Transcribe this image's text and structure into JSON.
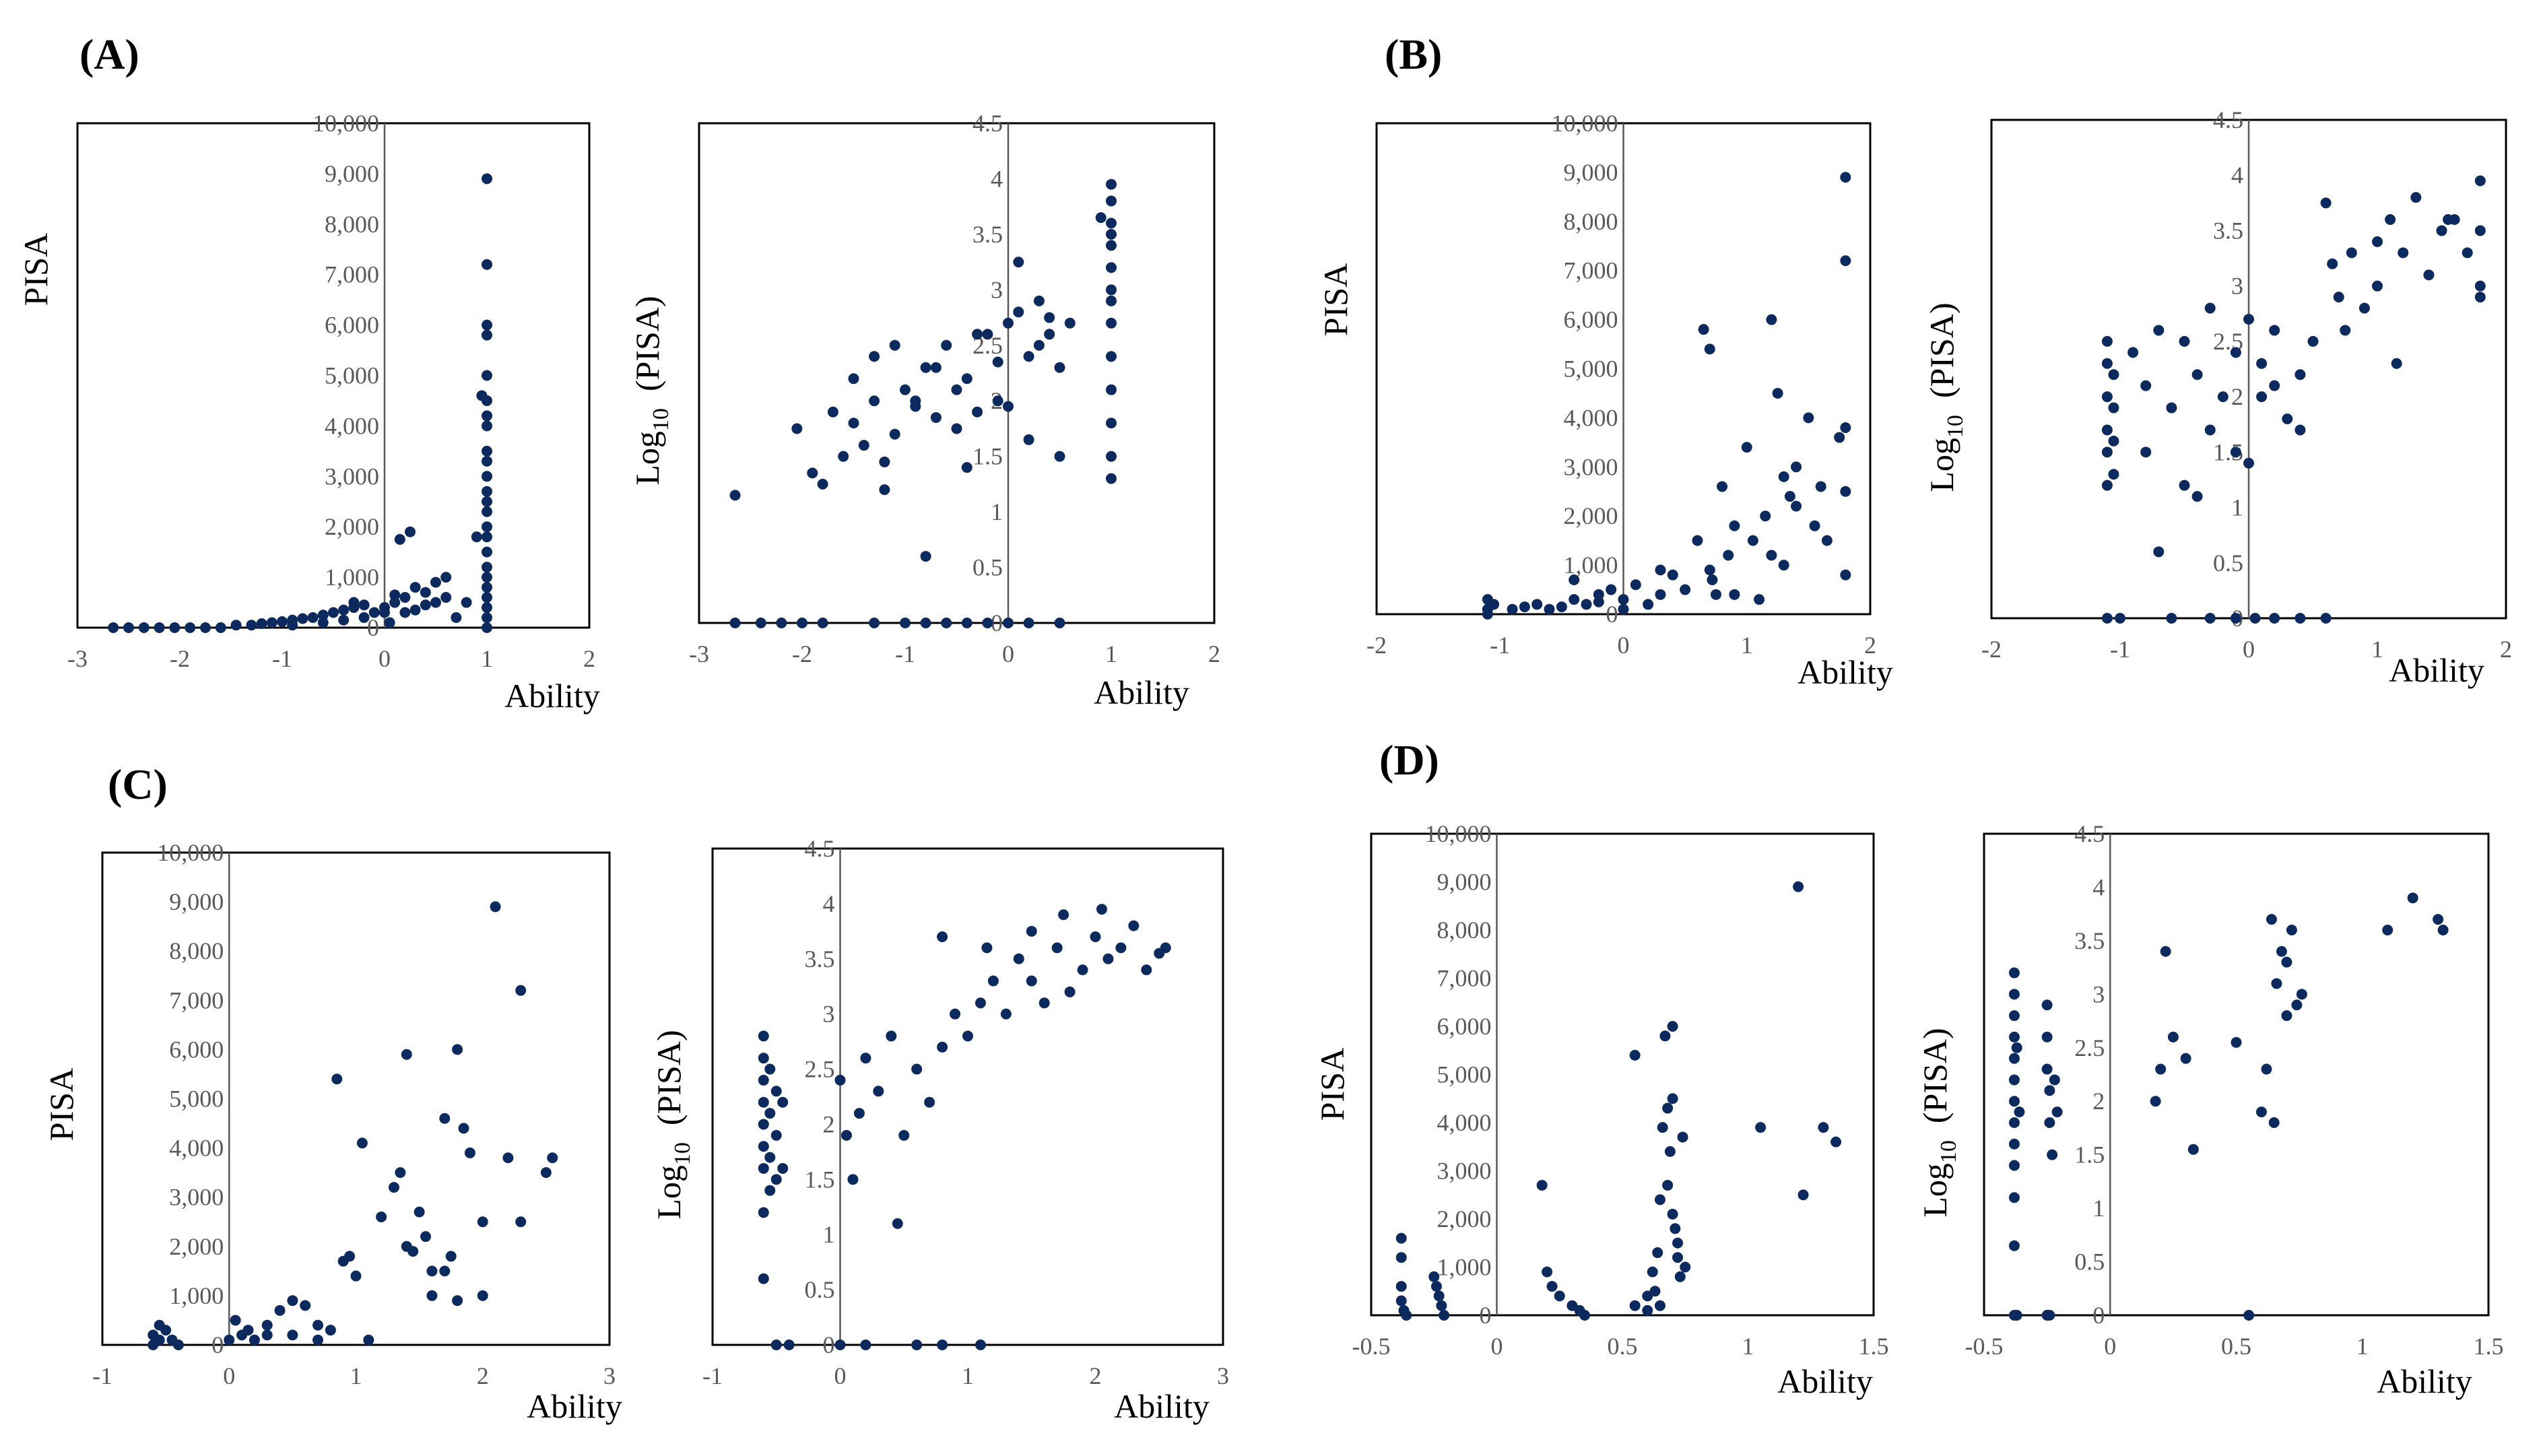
{
  "figure": {
    "panels": [
      {
        "id": "A",
        "label": "(A)"
      },
      {
        "id": "B",
        "label": "(B)"
      },
      {
        "id": "C",
        "label": "(C)"
      },
      {
        "id": "D",
        "label": "(D)"
      }
    ],
    "point_color": "#0d2a5e",
    "axis_line_color": "#595959"
  },
  "chart_data": [
    {
      "panel": "A",
      "type": "scatter",
      "title": "",
      "xlabel": "Ability",
      "ylabel": "PISA",
      "xlim": [
        -3,
        2
      ],
      "ylim": [
        0,
        10000
      ],
      "xticks": [
        "-3",
        "-2",
        "-1",
        "0",
        "1",
        "2"
      ],
      "yticks": [
        "0",
        "1,000",
        "2,000",
        "3,000",
        "4,000",
        "5,000",
        "6,000",
        "7,000",
        "8,000",
        "9,000",
        "10,000"
      ],
      "x": [
        -2.65,
        -2.5,
        -2.35,
        -2.2,
        -2.05,
        -1.9,
        -1.75,
        -1.6,
        -1.45,
        -1.3,
        -1.2,
        -1.1,
        -1.0,
        -0.9,
        -0.8,
        -0.7,
        -0.6,
        -0.5,
        -0.4,
        -0.3,
        -0.2,
        -0.1,
        0.0,
        0.1,
        0.2,
        0.3,
        0.4,
        0.5,
        0.6,
        0.7,
        -0.9,
        -0.6,
        -0.4,
        -0.2,
        0.0,
        0.1,
        0.15,
        0.25,
        0.3,
        0.4,
        0.5,
        0.6,
        -0.3,
        0.05,
        0.2,
        0.8,
        0.9,
        0.95,
        1.0,
        1.0,
        1.0,
        1.0,
        1.0,
        1.0,
        1.0,
        1.0,
        1.0,
        1.0,
        1.0,
        1.0,
        1.0,
        1.0,
        1.0,
        1.0,
        1.0,
        1.0,
        1.0,
        1.0,
        1.0,
        1.0,
        1.0,
        1.0
      ],
      "y": [
        0,
        0,
        0,
        0,
        0,
        0,
        0,
        0,
        50,
        50,
        80,
        100,
        120,
        150,
        180,
        200,
        250,
        300,
        350,
        400,
        450,
        300,
        400,
        500,
        600,
        350,
        450,
        500,
        600,
        200,
        50,
        100,
        150,
        200,
        300,
        650,
        1750,
        1900,
        800,
        700,
        900,
        1000,
        500,
        100,
        300,
        500,
        1800,
        4600,
        8900,
        7200,
        6000,
        5800,
        5000,
        4500,
        4200,
        4000,
        3500,
        3300,
        3000,
        2700,
        2500,
        2300,
        2000,
        1800,
        1500,
        1200,
        1000,
        800,
        600,
        400,
        200,
        0
      ]
    },
    {
      "panel": "A",
      "type": "scatter",
      "title": "",
      "xlabel": "Ability",
      "ylabel": "Log10 (PISA)",
      "ylabel_main": "Log",
      "ylabel_sub": "10",
      "ylabel_rest": "(PISA)",
      "xlim": [
        -3,
        2
      ],
      "ylim": [
        0,
        4.5
      ],
      "xticks": [
        "-3",
        "-2",
        "-1",
        "0",
        "1",
        "2"
      ],
      "yticks": [
        "0",
        "0.5",
        "1",
        "1.5",
        "2",
        "2.5",
        "3",
        "3.5",
        "4",
        "4.5"
      ],
      "x": [
        -2.65,
        -2.05,
        -1.9,
        -1.8,
        -1.7,
        -1.6,
        -1.5,
        -1.4,
        -1.3,
        -1.2,
        -1.1,
        -1.0,
        -0.9,
        -0.8,
        -0.7,
        -0.6,
        -0.5,
        -0.4,
        -0.3,
        -0.2,
        -0.1,
        0.0,
        0.1,
        0.2,
        0.3,
        0.4,
        0.5,
        0.6,
        -1.5,
        -1.3,
        -1.1,
        -0.9,
        -0.7,
        -0.5,
        -0.3,
        -0.1,
        0.1,
        0.3,
        0.5,
        -1.2,
        -0.8,
        -0.4,
        0.0,
        0.2,
        0.4,
        -2.65,
        -2.4,
        -2.2,
        -2.0,
        -1.8,
        -1.3,
        -1.0,
        -0.8,
        -0.6,
        -0.4,
        -0.2,
        0.0,
        0.2,
        0.5,
        1.0,
        1.0,
        1.0,
        1.0,
        1.0,
        1.0,
        1.0,
        1.0,
        1.0,
        1.0,
        1.0,
        1.0,
        1.0,
        1.0,
        0.9
      ],
      "y": [
        1.15,
        1.75,
        1.35,
        1.25,
        1.9,
        1.5,
        1.8,
        1.6,
        2.0,
        1.45,
        1.7,
        2.1,
        1.95,
        2.3,
        1.85,
        2.5,
        2.1,
        2.2,
        1.9,
        2.6,
        2.35,
        2.7,
        2.8,
        2.4,
        2.9,
        2.6,
        2.3,
        2.7,
        2.2,
        2.4,
        2.5,
        2.0,
        2.3,
        1.75,
        2.6,
        2.0,
        3.25,
        2.5,
        1.5,
        1.2,
        0.6,
        1.4,
        1.95,
        1.65,
        2.75,
        0,
        0,
        0,
        0,
        0,
        0,
        0,
        0,
        0,
        0,
        0,
        0,
        0,
        0,
        3.95,
        3.8,
        3.6,
        3.4,
        3.2,
        3.0,
        2.7,
        2.4,
        2.1,
        1.8,
        1.5,
        1.3,
        3.5,
        2.9,
        3.65
      ]
    },
    {
      "panel": "B",
      "type": "scatter",
      "title": "",
      "xlabel": "Ability",
      "ylabel": "PISA",
      "xlim": [
        -2,
        2
      ],
      "ylim": [
        0,
        10000
      ],
      "xticks": [
        "-2",
        "-1",
        "0",
        "1",
        "2"
      ],
      "yticks": [
        "0",
        "1,000",
        "2,000",
        "3,000",
        "4,000",
        "5,000",
        "6,000",
        "7,000",
        "8,000",
        "9,000",
        "10,000"
      ],
      "x": [
        -1.1,
        -1.1,
        -1.1,
        -1.05,
        -0.9,
        -0.8,
        -0.7,
        -0.6,
        -0.5,
        -0.4,
        -0.3,
        -0.2,
        -0.1,
        0.0,
        0.1,
        0.2,
        0.3,
        0.4,
        0.5,
        -0.4,
        0.0,
        -0.2,
        0.3,
        0.6,
        0.65,
        0.7,
        0.75,
        0.8,
        0.85,
        0.9,
        1.0,
        1.05,
        1.1,
        1.15,
        1.2,
        1.25,
        1.3,
        1.35,
        1.4,
        1.5,
        1.55,
        1.6,
        1.65,
        1.75,
        1.8,
        1.8,
        1.8,
        1.8,
        1.8,
        0.7,
        0.72,
        1.2,
        1.3,
        1.4,
        0.9
      ],
      "y": [
        0,
        100,
        300,
        200,
        100,
        150,
        200,
        100,
        150,
        300,
        200,
        400,
        500,
        300,
        600,
        200,
        400,
        800,
        500,
        700,
        100,
        250,
        900,
        1500,
        5800,
        5400,
        400,
        2600,
        1200,
        1800,
        3400,
        1500,
        300,
        2000,
        6000,
        4500,
        2800,
        2400,
        3000,
        4000,
        1800,
        2600,
        1500,
        3600,
        8900,
        7200,
        3800,
        2500,
        800,
        900,
        700,
        1200,
        1000,
        2200,
        400
      ]
    },
    {
      "panel": "B",
      "type": "scatter",
      "title": "",
      "xlabel": "Ability",
      "ylabel": "Log10 (PISA)",
      "ylabel_main": "Log",
      "ylabel_sub": "10",
      "ylabel_rest": "(PISA)",
      "xlim": [
        -2,
        2
      ],
      "ylim": [
        0,
        4.5
      ],
      "xticks": [
        "-2",
        "-1",
        "0",
        "1",
        "2"
      ],
      "yticks": [
        "0",
        "0.5",
        "1",
        "1.5",
        "2",
        "2.5",
        "3",
        "3.5",
        "4",
        "4.5"
      ],
      "x": [
        -1.1,
        -1.1,
        -1.1,
        -1.1,
        -1.1,
        -1.1,
        -1.05,
        -1.05,
        -1.05,
        -1.05,
        -0.9,
        -0.8,
        -0.7,
        -0.6,
        -0.5,
        -0.4,
        -0.3,
        -0.2,
        -0.1,
        0.0,
        0.1,
        0.2,
        0.3,
        0.4,
        0.5,
        -0.8,
        -0.5,
        -0.3,
        0.0,
        0.2,
        -0.7,
        -0.4,
        -0.1,
        0.1,
        0.4,
        0.6,
        0.65,
        0.7,
        0.75,
        0.8,
        0.9,
        1.0,
        1.1,
        1.2,
        1.3,
        1.4,
        1.5,
        1.6,
        1.7,
        1.8,
        1.8,
        1.8,
        1.8,
        1.55,
        1.0,
        1.15,
        -1.1,
        -1.0,
        -0.6,
        -0.3,
        -0.1,
        0.05,
        0.2,
        0.4,
        0.6
      ],
      "y": [
        2.5,
        2.3,
        2.0,
        1.7,
        1.5,
        1.2,
        2.2,
        1.9,
        1.6,
        1.3,
        2.4,
        2.1,
        2.6,
        1.9,
        2.5,
        2.2,
        2.8,
        2.0,
        2.4,
        2.7,
        2.3,
        2.6,
        1.8,
        2.2,
        2.5,
        1.5,
        1.2,
        1.7,
        1.4,
        2.1,
        0.6,
        1.1,
        1.5,
        2.0,
        1.7,
        3.75,
        3.2,
        2.9,
        2.6,
        3.3,
        2.8,
        3.4,
        3.6,
        3.3,
        3.8,
        3.1,
        3.5,
        3.6,
        3.3,
        3.95,
        3.5,
        3.0,
        2.9,
        3.6,
        3.0,
        2.3,
        0,
        0,
        0,
        0,
        0,
        0,
        0,
        0,
        0
      ]
    },
    {
      "panel": "C",
      "type": "scatter",
      "title": "",
      "xlabel": "Ability",
      "ylabel": "PISA",
      "xlim": [
        -1,
        3
      ],
      "ylim": [
        0,
        10000
      ],
      "xticks": [
        "-1",
        "0",
        "1",
        "2",
        "3"
      ],
      "yticks": [
        "0",
        "1,000",
        "2,000",
        "3,000",
        "4,000",
        "5,000",
        "6,000",
        "7,000",
        "8,000",
        "9,000",
        "10,000"
      ],
      "x": [
        -0.6,
        -0.6,
        -0.55,
        -0.55,
        -0.5,
        -0.45,
        -0.4,
        0.0,
        0.05,
        0.1,
        0.15,
        0.2,
        0.3,
        0.4,
        0.5,
        0.6,
        0.7,
        0.8,
        0.9,
        1.0,
        1.1,
        0.3,
        0.5,
        0.7,
        0.85,
        0.95,
        1.05,
        1.2,
        1.3,
        1.35,
        1.4,
        1.45,
        1.5,
        1.55,
        1.6,
        1.7,
        1.75,
        1.8,
        1.85,
        1.9,
        2.0,
        2.1,
        2.2,
        2.3,
        2.5,
        2.55,
        2.3,
        1.8,
        1.6,
        1.4,
        1.7,
        2.0
      ],
      "y": [
        0,
        200,
        400,
        100,
        300,
        100,
        0,
        100,
        500,
        200,
        300,
        100,
        400,
        700,
        200,
        800,
        100,
        300,
        1700,
        1400,
        100,
        200,
        900,
        400,
        5400,
        1800,
        4100,
        2600,
        3200,
        3500,
        5900,
        1900,
        2700,
        2200,
        1500,
        4600,
        1800,
        6000,
        4400,
        3900,
        2500,
        8900,
        3800,
        7200,
        3500,
        3800,
        2500,
        900,
        1000,
        2000,
        1500,
        1000
      ]
    },
    {
      "panel": "C",
      "type": "scatter",
      "title": "",
      "xlabel": "Ability",
      "ylabel": "Log10 (PISA)",
      "ylabel_main": "Log",
      "ylabel_sub": "10",
      "ylabel_rest": "(PISA)",
      "xlim": [
        -1,
        3
      ],
      "ylim": [
        0,
        4.5
      ],
      "xticks": [
        "-1",
        "0",
        "1",
        "2",
        "3"
      ],
      "yticks": [
        "0",
        "0.5",
        "1",
        "1.5",
        "2",
        "2.5",
        "3",
        "3.5",
        "4",
        "4.5"
      ],
      "x": [
        -0.6,
        -0.6,
        -0.6,
        -0.6,
        -0.6,
        -0.6,
        -0.6,
        -0.55,
        -0.55,
        -0.55,
        -0.55,
        -0.5,
        -0.5,
        -0.5,
        -0.45,
        -0.45,
        -0.6,
        -0.6,
        0.0,
        0.05,
        0.1,
        0.15,
        0.2,
        0.3,
        0.4,
        0.5,
        0.6,
        0.7,
        0.8,
        0.9,
        1.0,
        1.1,
        1.2,
        1.3,
        1.4,
        1.5,
        1.6,
        1.7,
        1.8,
        1.9,
        2.0,
        2.1,
        2.2,
        2.3,
        2.4,
        2.5,
        2.55,
        0.45,
        0.8,
        1.15,
        1.5,
        1.75,
        2.05,
        -0.5,
        -0.4,
        0.0,
        0.2,
        0.6,
        0.8,
        1.1
      ],
      "y": [
        2.8,
        2.6,
        2.4,
        2.2,
        2.0,
        1.8,
        1.6,
        2.5,
        2.1,
        1.7,
        1.4,
        2.3,
        1.9,
        1.5,
        2.2,
        1.6,
        0.6,
        1.2,
        2.4,
        1.9,
        1.5,
        2.1,
        2.6,
        2.3,
        2.8,
        1.9,
        2.5,
        2.2,
        2.7,
        3.0,
        2.8,
        3.1,
        3.3,
        3.0,
        3.5,
        3.3,
        3.1,
        3.6,
        3.2,
        3.4,
        3.7,
        3.5,
        3.6,
        3.8,
        3.4,
        3.55,
        3.6,
        1.1,
        3.7,
        3.6,
        3.75,
        3.9,
        3.95,
        0,
        0,
        0,
        0,
        0,
        0,
        0
      ]
    },
    {
      "panel": "D",
      "type": "scatter",
      "title": "",
      "xlabel": "Ability",
      "ylabel": "PISA",
      "xlim": [
        -0.5,
        1.5
      ],
      "ylim": [
        0,
        10000
      ],
      "xticks": [
        "-0.5",
        "0",
        "0.5",
        "1",
        "1.5"
      ],
      "yticks": [
        "0",
        "1,000",
        "2,000",
        "3,000",
        "4,000",
        "5,000",
        "6,000",
        "7,000",
        "8,000",
        "9,000",
        "10,000"
      ],
      "x": [
        -0.38,
        -0.38,
        -0.38,
        -0.38,
        -0.37,
        -0.36,
        -0.25,
        -0.24,
        -0.23,
        -0.22,
        -0.21,
        0.18,
        0.2,
        0.22,
        0.25,
        0.3,
        0.33,
        0.35,
        0.55,
        0.6,
        0.62,
        0.63,
        0.64,
        0.65,
        0.66,
        0.67,
        0.68,
        0.69,
        0.7,
        0.7,
        0.71,
        0.72,
        0.73,
        0.74,
        0.75,
        0.68,
        0.7,
        0.72,
        1.05,
        1.2,
        1.22,
        1.3,
        1.35,
        0.55,
        0.6,
        0.65
      ],
      "y": [
        1600,
        1200,
        600,
        300,
        100,
        0,
        800,
        600,
        400,
        200,
        0,
        2700,
        900,
        600,
        400,
        200,
        100,
        0,
        200,
        100,
        900,
        500,
        1300,
        2400,
        3900,
        5800,
        4300,
        3400,
        6000,
        2100,
        1800,
        1200,
        800,
        3700,
        1000,
        2700,
        4500,
        1500,
        3900,
        8900,
        2500,
        3900,
        3600,
        5400,
        400,
        200
      ]
    },
    {
      "panel": "D",
      "type": "scatter",
      "title": "",
      "xlabel": "Ability",
      "ylabel": "Log10 (PISA)",
      "ylabel_main": "Log",
      "ylabel_sub": "10",
      "ylabel_rest": "(PISA)",
      "xlim": [
        -0.5,
        1.5
      ],
      "ylim": [
        0,
        4.5
      ],
      "xticks": [
        "-0.5",
        "0",
        "0.5",
        "1",
        "1.5"
      ],
      "yticks": [
        "0",
        "0.5",
        "1",
        "1.5",
        "2",
        "2.5",
        "3",
        "3.5",
        "4",
        "4.5"
      ],
      "x": [
        -0.38,
        -0.38,
        -0.38,
        -0.38,
        -0.38,
        -0.38,
        -0.38,
        -0.38,
        -0.38,
        -0.38,
        -0.38,
        -0.38,
        -0.37,
        -0.36,
        -0.25,
        -0.25,
        -0.25,
        -0.24,
        -0.24,
        -0.23,
        -0.22,
        -0.21,
        0.18,
        0.2,
        0.22,
        0.25,
        0.3,
        0.33,
        0.5,
        0.6,
        0.62,
        0.64,
        0.66,
        0.68,
        0.7,
        0.72,
        0.74,
        0.76,
        0.65,
        0.7,
        1.1,
        1.2,
        1.3,
        1.32,
        -0.38,
        -0.37,
        -0.25,
        -0.24,
        0.55
      ],
      "y": [
        3.2,
        3.0,
        2.8,
        2.6,
        2.4,
        2.2,
        2.0,
        1.8,
        1.6,
        1.4,
        1.1,
        0.65,
        2.5,
        1.9,
        2.9,
        2.6,
        2.3,
        2.1,
        1.8,
        1.5,
        2.2,
        1.9,
        2.0,
        2.3,
        3.4,
        2.6,
        2.4,
        1.55,
        2.55,
        1.9,
        2.3,
        3.7,
        3.1,
        3.4,
        3.3,
        3.6,
        2.9,
        3.0,
        1.8,
        2.8,
        3.6,
        3.9,
        3.7,
        3.6,
        0,
        0,
        0,
        0,
        0
      ]
    }
  ]
}
